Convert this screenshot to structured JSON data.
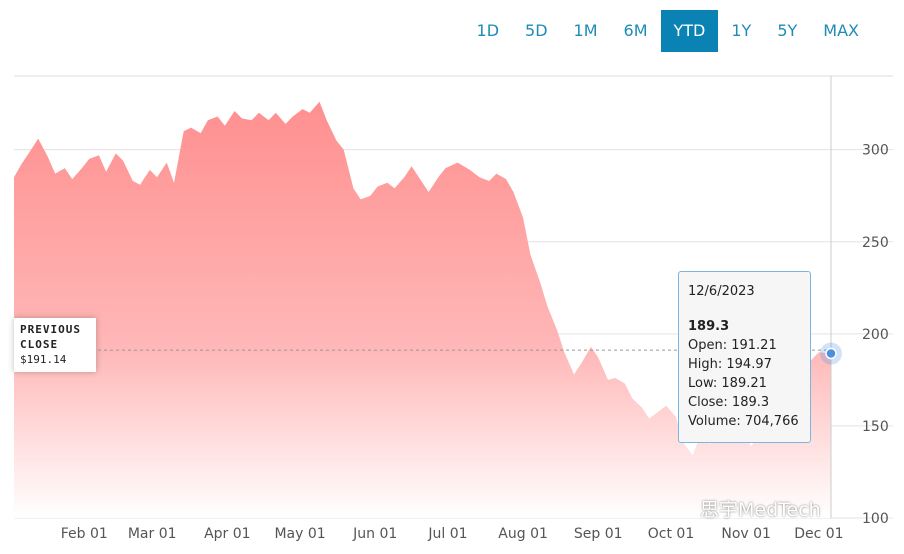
{
  "range_buttons": [
    {
      "label": "1D",
      "active": false
    },
    {
      "label": "5D",
      "active": false
    },
    {
      "label": "1M",
      "active": false
    },
    {
      "label": "6M",
      "active": false
    },
    {
      "label": "YTD",
      "active": true
    },
    {
      "label": "1Y",
      "active": false
    },
    {
      "label": "5Y",
      "active": false
    },
    {
      "label": "MAX",
      "active": false
    }
  ],
  "previous_close": {
    "title_line1": "PREVIOUS",
    "title_line2": "CLOSE",
    "value": "$191.14",
    "numeric": 191.14
  },
  "tooltip": {
    "date": "12/6/2023",
    "value": "189.3",
    "open": "Open: 191.21",
    "high": "High: 194.97",
    "low": "Low: 189.21",
    "close": "Close: 189.3",
    "volume": "Volume: 704,766"
  },
  "watermark": "思宇MedTech",
  "colors": {
    "area_top": "#ff8f8f",
    "area_bottom": "#ffffff",
    "accent": "#0a82b3",
    "marker": "#4a90e2"
  },
  "chart_data": {
    "type": "area",
    "ylim": [
      100,
      340
    ],
    "y_ticks": [
      100,
      150,
      200,
      250,
      300
    ],
    "y_tick_labels": [
      "100",
      "150",
      "200",
      "250",
      "300"
    ],
    "x_tick_labels": [
      "Feb 01",
      "Mar 01",
      "Apr 01",
      "May 01",
      "Jun 01",
      "Jul 01",
      "Aug 01",
      "Sep 01",
      "Oct 01",
      "Nov 01",
      "Dec 01"
    ],
    "x_tick_dates": [
      "2023-02-01",
      "2023-03-01",
      "2023-04-01",
      "2023-05-01",
      "2023-06-01",
      "2023-07-01",
      "2023-08-01",
      "2023-09-01",
      "2023-10-01",
      "2023-11-01",
      "2023-12-01"
    ],
    "x_range": [
      "2023-01-03",
      "2023-12-06"
    ],
    "grid": true,
    "series": [
      {
        "dates": [
          "2023-01-03",
          "2023-01-06",
          "2023-01-10",
          "2023-01-13",
          "2023-01-17",
          "2023-01-20",
          "2023-01-24",
          "2023-01-27",
          "2023-01-31",
          "2023-02-03",
          "2023-02-07",
          "2023-02-10",
          "2023-02-14",
          "2023-02-17",
          "2023-02-21",
          "2023-02-24",
          "2023-02-28",
          "2023-03-03",
          "2023-03-07",
          "2023-03-10",
          "2023-03-14",
          "2023-03-17",
          "2023-03-21",
          "2023-03-24",
          "2023-03-28",
          "2023-03-31",
          "2023-04-04",
          "2023-04-07",
          "2023-04-11",
          "2023-04-14",
          "2023-04-18",
          "2023-04-21",
          "2023-04-25",
          "2023-04-28",
          "2023-05-02",
          "2023-05-05",
          "2023-05-09",
          "2023-05-12",
          "2023-05-16",
          "2023-05-19",
          "2023-05-23",
          "2023-05-26",
          "2023-05-30",
          "2023-06-02",
          "2023-06-06",
          "2023-06-09",
          "2023-06-13",
          "2023-06-16",
          "2023-06-20",
          "2023-06-23",
          "2023-06-27",
          "2023-06-30",
          "2023-07-05",
          "2023-07-10",
          "2023-07-14",
          "2023-07-18",
          "2023-07-21",
          "2023-07-25",
          "2023-07-28",
          "2023-08-01",
          "2023-08-04",
          "2023-08-08",
          "2023-08-11",
          "2023-08-15",
          "2023-08-18",
          "2023-08-22",
          "2023-08-25",
          "2023-08-29",
          "2023-09-01",
          "2023-09-05",
          "2023-09-08",
          "2023-09-12",
          "2023-09-15",
          "2023-09-19",
          "2023-09-22",
          "2023-09-26",
          "2023-09-29",
          "2023-10-03",
          "2023-10-06",
          "2023-10-10",
          "2023-10-13",
          "2023-10-17",
          "2023-10-20",
          "2023-10-24",
          "2023-10-27",
          "2023-10-31",
          "2023-11-03",
          "2023-11-07",
          "2023-11-10",
          "2023-11-14",
          "2023-11-17",
          "2023-11-21",
          "2023-11-24",
          "2023-11-28",
          "2023-12-01",
          "2023-12-06"
        ],
        "values": [
          285,
          292,
          300,
          306,
          296,
          287,
          290,
          284,
          290,
          295,
          297,
          288,
          298,
          294,
          283,
          281,
          289,
          285,
          293,
          282,
          310,
          312,
          309,
          316,
          318,
          313,
          321,
          317,
          316,
          320,
          316,
          320,
          314,
          318,
          322,
          320,
          326,
          316,
          305,
          300,
          279,
          273,
          275,
          280,
          282,
          279,
          285,
          291,
          283,
          277,
          285,
          290,
          293,
          289,
          285,
          283,
          287,
          284,
          277,
          263,
          243,
          228,
          215,
          202,
          190,
          178,
          184,
          193,
          187,
          175,
          176,
          173,
          165,
          160,
          154,
          158,
          161,
          155,
          141,
          134,
          145,
          140,
          149,
          156,
          152,
          147,
          139,
          146,
          155,
          161,
          172,
          178,
          183,
          186,
          190,
          189.3
        ]
      }
    ]
  }
}
